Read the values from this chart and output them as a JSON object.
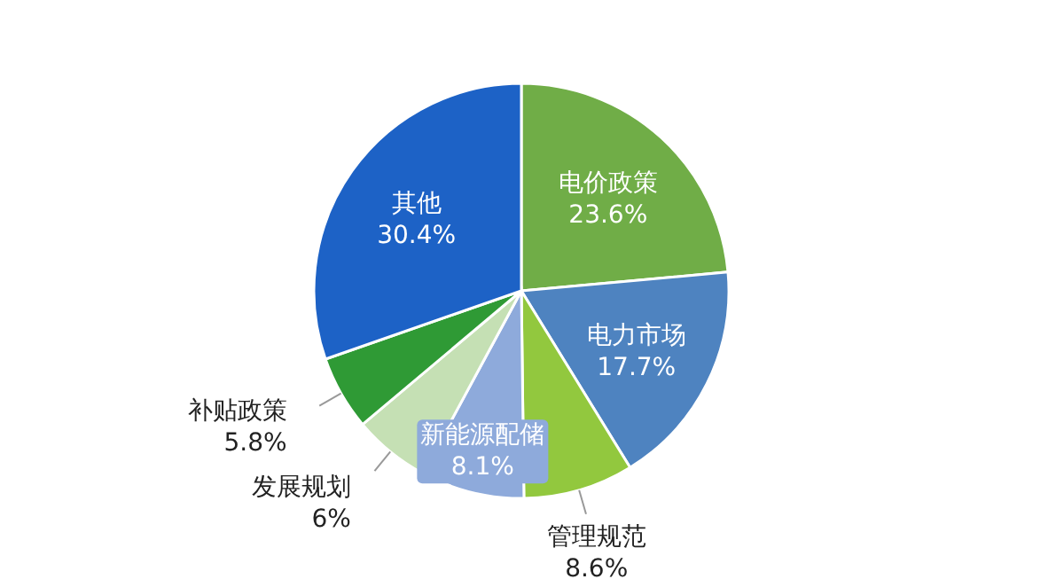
{
  "chart_data": {
    "type": "pie",
    "categories": [
      "电价政策",
      "电力市场",
      "管理规范",
      "新能源配储",
      "发展规划",
      "补贴政策",
      "其他"
    ],
    "values": [
      23.6,
      17.7,
      8.6,
      8.1,
      6,
      5.8,
      30.4
    ],
    "value_labels": [
      "23.6%",
      "17.7%",
      "8.6%",
      "8.1%",
      "6%",
      "5.8%",
      "30.4%"
    ],
    "colors": [
      "#70ad47",
      "#4e83c0",
      "#92c83e",
      "#8eaadb",
      "#c5e0b4",
      "#2f9a35",
      "#1d62c6"
    ]
  }
}
